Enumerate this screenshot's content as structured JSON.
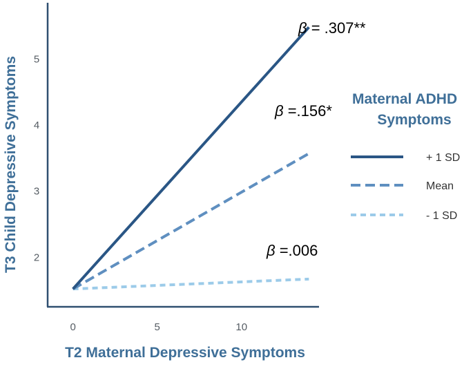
{
  "chart_data": {
    "type": "line",
    "xlabel": "T2 Maternal Depressive Symptoms",
    "ylabel": "T3 Child Depressive Symptoms",
    "xlim": [
      -1.5,
      14.6
    ],
    "ylim": [
      1.25,
      5.85
    ],
    "x_ticks": [
      0,
      5,
      10
    ],
    "y_ticks": [
      2,
      3,
      4,
      5
    ],
    "x_tick_labels": [
      "0",
      "5",
      "10"
    ],
    "y_tick_labels": [
      "2",
      "3",
      "4",
      "5"
    ],
    "legend": {
      "title_line1": "Maternal ADHD",
      "title_line2": "Symptoms",
      "placement": "right"
    },
    "series": [
      {
        "name": "+ 1 SD",
        "x": [
          0,
          14
        ],
        "y": [
          1.52,
          5.48
        ],
        "color": "#2a5685",
        "style": "solid",
        "annotation_symbol": "β",
        "annotation_value": " = .307**"
      },
      {
        "name": "Mean",
        "x": [
          0,
          14
        ],
        "y": [
          1.52,
          3.57
        ],
        "color": "#5f8fc0",
        "style": "dashed",
        "annotation_symbol": "β",
        "annotation_value": " =.156*"
      },
      {
        "name": "- 1 SD",
        "x": [
          0,
          14
        ],
        "y": [
          1.52,
          1.67
        ],
        "color": "#9ccbe9",
        "style": "dotted",
        "annotation_symbol": "β",
        "annotation_value": " =.006"
      }
    ],
    "grid": false
  }
}
